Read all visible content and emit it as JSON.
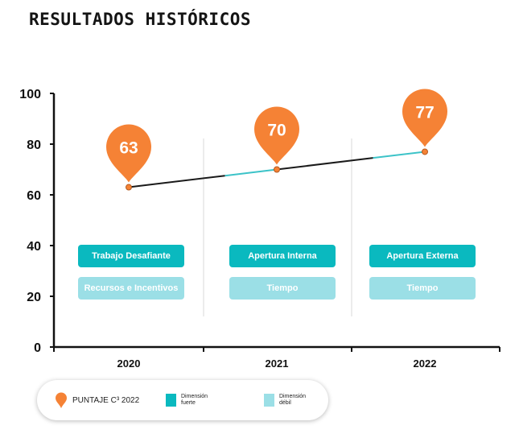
{
  "title": "RESULTADOS HISTÓRICOS",
  "colors": {
    "pin": "#f58235",
    "strong": "#0ab9bf",
    "weak": "#9bdfe6",
    "line": "#1a1a1a",
    "line_accent": "#3cc3c8"
  },
  "chart_data": {
    "type": "line",
    "x": [
      "2020",
      "2021",
      "2022"
    ],
    "y_ticks": [
      "0",
      "20",
      "40",
      "60",
      "80",
      "100"
    ],
    "ylim": [
      0,
      100
    ],
    "series": [
      {
        "name": "PUNTAJE C³ 2022",
        "values": [
          63,
          70,
          77
        ]
      }
    ],
    "annotations": [
      {
        "year": "2020",
        "strong": "Trabajo Desafiante",
        "weak": "Recursos e Incentivos"
      },
      {
        "year": "2021",
        "strong": "Apertura Interna",
        "weak": "Tiempo"
      },
      {
        "year": "2022",
        "strong": "Apertura Externa",
        "weak": "Tiempo"
      }
    ],
    "grid": false
  },
  "legend": {
    "score_label": "PUNTAJE C³ 2022",
    "strong_label": "Dimensión fuerte",
    "weak_label": "Dimensión débil"
  }
}
